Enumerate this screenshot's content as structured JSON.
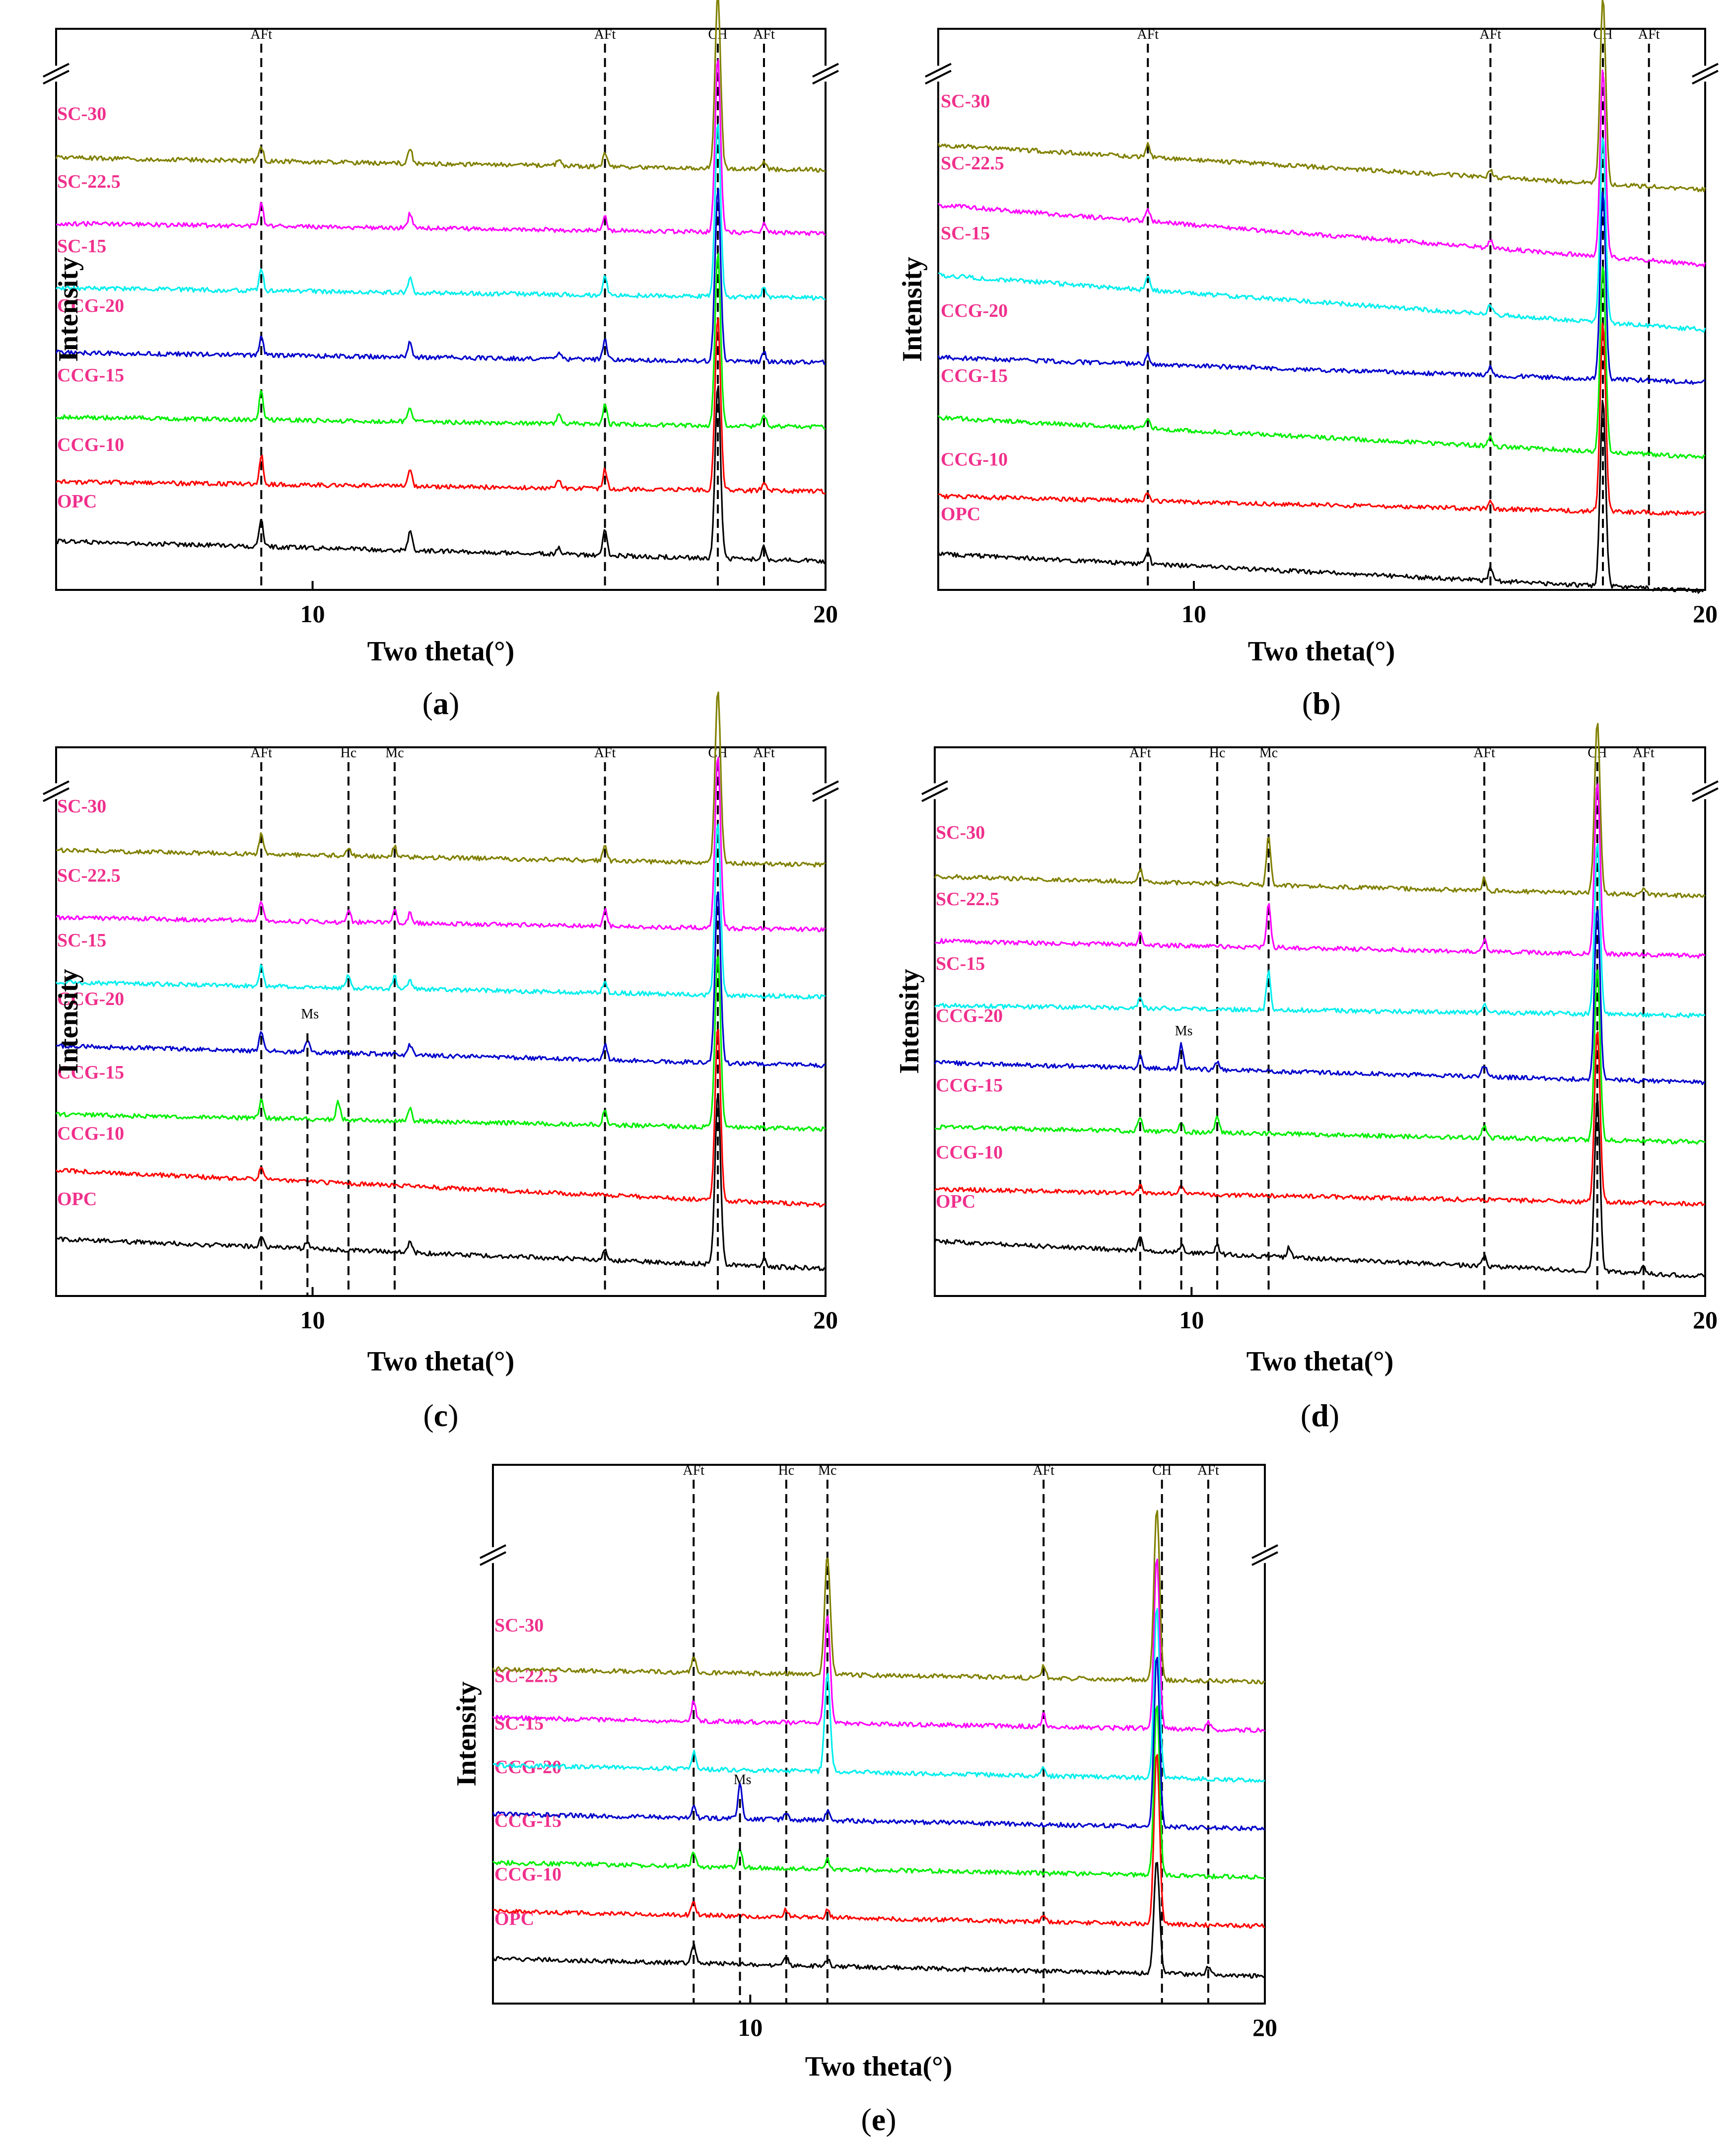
{
  "figure": {
    "xlabel": "Two theta(°)",
    "ylabel": "Intensity",
    "xlim": [
      5,
      20
    ],
    "xtick_labels": [
      "10",
      "20"
    ],
    "series_names": [
      "OPC",
      "CCG-10",
      "CCG-15",
      "CCG-20",
      "SC-15",
      "SC-22.5",
      "SC-30"
    ],
    "series_colors": [
      "#000000",
      "#ff0000",
      "#00ee00",
      "#0000cc",
      "#00eeee",
      "#ff00ff",
      "#808000"
    ],
    "label_color": "#f0308c"
  },
  "chart_data": [
    {
      "panel": "a",
      "type": "line",
      "title": "",
      "xlabel": "Two theta(°)",
      "ylabel": "Intensity",
      "xlim": [
        5,
        20
      ],
      "xticks": [
        10,
        20
      ],
      "phase_markers": [
        {
          "label": "AFt",
          "x": 9.0
        },
        {
          "label": "AFt",
          "x": 15.7
        },
        {
          "label": "CH",
          "x": 17.9
        },
        {
          "label": "AFt",
          "x": 18.8
        }
      ],
      "series": [
        {
          "name": "OPC",
          "peaks": [
            [
              9.0,
              55
            ],
            [
              11.9,
              40
            ],
            [
              14.8,
              15
            ],
            [
              15.7,
              50
            ],
            [
              17.9,
              350
            ],
            [
              18.8,
              25
            ]
          ]
        },
        {
          "name": "CCG-10",
          "peaks": [
            [
              9.0,
              60
            ],
            [
              11.9,
              30
            ],
            [
              14.8,
              15
            ],
            [
              15.7,
              40
            ],
            [
              17.9,
              350
            ],
            [
              18.8,
              20
            ]
          ]
        },
        {
          "name": "CCG-15",
          "peaks": [
            [
              9.0,
              60
            ],
            [
              11.9,
              30
            ],
            [
              14.8,
              20
            ],
            [
              15.7,
              40
            ],
            [
              17.9,
              350
            ],
            [
              18.8,
              25
            ]
          ]
        },
        {
          "name": "CCG-20",
          "peaks": [
            [
              9.0,
              35
            ],
            [
              11.9,
              30
            ],
            [
              14.8,
              15
            ],
            [
              15.7,
              40
            ],
            [
              17.9,
              350
            ],
            [
              18.8,
              20
            ]
          ]
        },
        {
          "name": "SC-15",
          "peaks": [
            [
              9.0,
              45
            ],
            [
              11.9,
              30
            ],
            [
              15.7,
              40
            ],
            [
              17.9,
              350
            ],
            [
              18.8,
              20
            ]
          ]
        },
        {
          "name": "SC-22.5",
          "peaks": [
            [
              9.0,
              45
            ],
            [
              11.9,
              30
            ],
            [
              15.7,
              30
            ],
            [
              17.9,
              350
            ],
            [
              18.8,
              20
            ]
          ]
        },
        {
          "name": "SC-30",
          "peaks": [
            [
              9.0,
              30
            ],
            [
              11.9,
              30
            ],
            [
              14.8,
              15
            ],
            [
              15.7,
              30
            ],
            [
              17.9,
              350
            ],
            [
              18.8,
              15
            ]
          ]
        }
      ]
    },
    {
      "panel": "b",
      "type": "line",
      "title": "",
      "xlabel": "Two theta(°)",
      "ylabel": "Intensity",
      "xlim": [
        5,
        20
      ],
      "xticks": [
        10,
        20
      ],
      "phase_markers": [
        {
          "label": "AFt",
          "x": 9.1
        },
        {
          "label": "AFt",
          "x": 15.8
        },
        {
          "label": "CH",
          "x": 18.0
        },
        {
          "label": "AFt",
          "x": 18.9
        }
      ],
      "series": [
        {
          "name": "OPC",
          "peaks": [
            [
              9.1,
              25
            ],
            [
              15.8,
              25
            ],
            [
              18.0,
              380
            ]
          ]
        },
        {
          "name": "CCG-10",
          "peaks": [
            [
              9.1,
              20
            ],
            [
              15.8,
              15
            ],
            [
              18.0,
              380
            ]
          ]
        },
        {
          "name": "CCG-15",
          "peaks": [
            [
              9.1,
              20
            ],
            [
              15.8,
              20
            ],
            [
              18.0,
              380
            ]
          ]
        },
        {
          "name": "CCG-20",
          "peaks": [
            [
              9.1,
              20
            ],
            [
              15.8,
              20
            ],
            [
              18.0,
              380
            ]
          ]
        },
        {
          "name": "SC-15",
          "peaks": [
            [
              9.1,
              30
            ],
            [
              15.8,
              20
            ],
            [
              18.0,
              380
            ]
          ]
        },
        {
          "name": "SC-22.5",
          "peaks": [
            [
              9.1,
              25
            ],
            [
              15.8,
              15
            ],
            [
              18.0,
              380
            ]
          ]
        },
        {
          "name": "SC-30",
          "peaks": [
            [
              9.1,
              25
            ],
            [
              15.8,
              15
            ],
            [
              18.0,
              380
            ]
          ]
        }
      ]
    },
    {
      "panel": "c",
      "type": "line",
      "title": "",
      "xlabel": "Two theta(°)",
      "ylabel": "Intensity",
      "xlim": [
        5,
        20
      ],
      "xticks": [
        10,
        20
      ],
      "phase_markers": [
        {
          "label": "AFt",
          "x": 9.0
        },
        {
          "label": "Hc",
          "x": 10.7
        },
        {
          "label": "Mc",
          "x": 11.6
        },
        {
          "label": "AFt",
          "x": 15.7
        },
        {
          "label": "CH",
          "x": 17.9
        },
        {
          "label": "AFt",
          "x": 18.8
        }
      ],
      "annotations": [
        {
          "text": "Ms",
          "x": 9.9
        }
      ],
      "series": [
        {
          "name": "OPC",
          "peaks": [
            [
              9.0,
              25
            ],
            [
              9.9,
              15
            ],
            [
              11.9,
              25
            ],
            [
              15.7,
              20
            ],
            [
              17.9,
              350
            ],
            [
              18.8,
              15
            ]
          ]
        },
        {
          "name": "CCG-10",
          "peaks": [
            [
              9.0,
              25
            ],
            [
              17.9,
              350
            ]
          ]
        },
        {
          "name": "CCG-15",
          "peaks": [
            [
              9.0,
              35
            ],
            [
              10.5,
              35
            ],
            [
              11.9,
              25
            ],
            [
              15.7,
              30
            ],
            [
              17.9,
              350
            ]
          ]
        },
        {
          "name": "CCG-20",
          "peaks": [
            [
              9.0,
              40
            ],
            [
              9.9,
              25
            ],
            [
              11.9,
              20
            ],
            [
              15.7,
              30
            ],
            [
              17.9,
              350
            ]
          ]
        },
        {
          "name": "SC-15",
          "peaks": [
            [
              9.0,
              40
            ],
            [
              10.7,
              25
            ],
            [
              11.6,
              25
            ],
            [
              11.9,
              20
            ],
            [
              15.7,
              25
            ],
            [
              17.9,
              350
            ]
          ]
        },
        {
          "name": "SC-22.5",
          "peaks": [
            [
              9.0,
              40
            ],
            [
              10.7,
              25
            ],
            [
              11.6,
              25
            ],
            [
              11.9,
              20
            ],
            [
              15.7,
              35
            ],
            [
              17.9,
              350
            ]
          ]
        },
        {
          "name": "SC-30",
          "peaks": [
            [
              9.0,
              40
            ],
            [
              10.7,
              15
            ],
            [
              11.6,
              20
            ],
            [
              15.7,
              35
            ],
            [
              17.9,
              350
            ]
          ]
        }
      ]
    },
    {
      "panel": "d",
      "type": "line",
      "title": "",
      "xlabel": "Two theta(°)",
      "ylabel": "Intensity",
      "xlim": [
        5,
        20
      ],
      "xticks": [
        10,
        20
      ],
      "phase_markers": [
        {
          "label": "AFt",
          "x": 9.0
        },
        {
          "label": "Hc",
          "x": 10.5
        },
        {
          "label": "Mc",
          "x": 11.5
        },
        {
          "label": "AFt",
          "x": 15.7
        },
        {
          "label": "CH",
          "x": 17.9
        },
        {
          "label": "AFt",
          "x": 18.8
        }
      ],
      "annotations": [
        {
          "text": "Ms",
          "x": 9.8
        }
      ],
      "series": [
        {
          "name": "OPC",
          "peaks": [
            [
              9.0,
              30
            ],
            [
              9.8,
              15
            ],
            [
              10.5,
              20
            ],
            [
              11.9,
              20
            ],
            [
              15.7,
              20
            ],
            [
              17.9,
              350
            ],
            [
              18.8,
              15
            ]
          ]
        },
        {
          "name": "CCG-10",
          "peaks": [
            [
              9.0,
              15
            ],
            [
              9.8,
              15
            ],
            [
              17.9,
              350
            ]
          ]
        },
        {
          "name": "CCG-15",
          "peaks": [
            [
              9.0,
              30
            ],
            [
              9.8,
              20
            ],
            [
              10.5,
              35
            ],
            [
              15.7,
              25
            ],
            [
              17.9,
              350
            ]
          ]
        },
        {
          "name": "CCG-20",
          "peaks": [
            [
              9.0,
              25
            ],
            [
              9.8,
              50
            ],
            [
              10.5,
              15
            ],
            [
              15.7,
              25
            ],
            [
              17.9,
              350
            ]
          ]
        },
        {
          "name": "SC-15",
          "peaks": [
            [
              9.0,
              25
            ],
            [
              11.5,
              80
            ],
            [
              15.7,
              20
            ],
            [
              17.9,
              350
            ]
          ]
        },
        {
          "name": "SC-22.5",
          "peaks": [
            [
              9.0,
              25
            ],
            [
              11.5,
              90
            ],
            [
              15.7,
              25
            ],
            [
              17.9,
              350
            ]
          ]
        },
        {
          "name": "SC-30",
          "peaks": [
            [
              9.0,
              25
            ],
            [
              11.5,
              100
            ],
            [
              15.7,
              25
            ],
            [
              17.9,
              350
            ],
            [
              18.8,
              15
            ]
          ]
        }
      ]
    },
    {
      "panel": "e",
      "type": "line",
      "title": "",
      "xlabel": "Two theta(°)",
      "ylabel": "Intensity",
      "xlim": [
        5,
        20
      ],
      "xticks": [
        10,
        20
      ],
      "phase_markers": [
        {
          "label": "AFt",
          "x": 8.9
        },
        {
          "label": "Hc",
          "x": 10.7
        },
        {
          "label": "Mc",
          "x": 11.5
        },
        {
          "label": "AFt",
          "x": 15.7
        },
        {
          "label": "CH",
          "x": 18.0
        },
        {
          "label": "AFt",
          "x": 18.9
        }
      ],
      "annotations": [
        {
          "text": "Ms",
          "x": 9.8
        }
      ],
      "series": [
        {
          "name": "OPC",
          "peaks": [
            [
              8.9,
              40
            ],
            [
              10.7,
              15
            ],
            [
              11.5,
              15
            ],
            [
              17.9,
              230
            ],
            [
              18.9,
              15
            ]
          ]
        },
        {
          "name": "CCG-10",
          "peaks": [
            [
              8.9,
              25
            ],
            [
              10.7,
              15
            ],
            [
              11.5,
              20
            ],
            [
              15.7,
              15
            ],
            [
              17.9,
              350
            ]
          ]
        },
        {
          "name": "CCG-15",
          "peaks": [
            [
              8.9,
              30
            ],
            [
              9.8,
              40
            ],
            [
              11.5,
              20
            ],
            [
              17.9,
              350
            ]
          ]
        },
        {
          "name": "CCG-20",
          "peaks": [
            [
              8.9,
              25
            ],
            [
              9.8,
              70
            ],
            [
              10.7,
              15
            ],
            [
              11.5,
              20
            ],
            [
              17.9,
              350
            ]
          ]
        },
        {
          "name": "SC-15",
          "peaks": [
            [
              8.9,
              35
            ],
            [
              11.5,
              200
            ],
            [
              15.7,
              15
            ],
            [
              17.9,
              350
            ]
          ]
        },
        {
          "name": "SC-22.5",
          "peaks": [
            [
              8.9,
              40
            ],
            [
              11.5,
              220
            ],
            [
              15.7,
              25
            ],
            [
              17.9,
              350
            ],
            [
              18.9,
              15
            ]
          ]
        },
        {
          "name": "SC-30",
          "peaks": [
            [
              8.9,
              30
            ],
            [
              11.5,
              240
            ],
            [
              15.7,
              25
            ],
            [
              17.9,
              350
            ]
          ]
        }
      ]
    }
  ],
  "panel_labels": {
    "a": {
      "open": "(",
      "letter": "a",
      "close": ")"
    },
    "b": {
      "open": "(",
      "letter": "b",
      "close": ")"
    },
    "c": {
      "open": "(",
      "letter": "c",
      "close": ")"
    },
    "d": {
      "open": "(",
      "letter": "d",
      "close": ")"
    },
    "e": {
      "open": "(",
      "letter": "e",
      "close": ")"
    }
  }
}
